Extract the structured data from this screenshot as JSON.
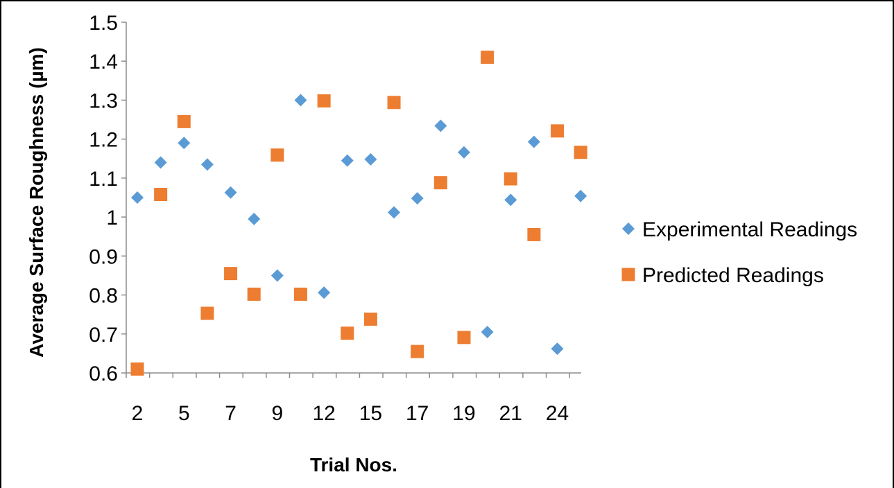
{
  "chart_data": {
    "type": "scatter",
    "title": "",
    "xlabel": "Trial Nos.",
    "ylabel": "Average Surface Roughness (µm)",
    "ylim": [
      0.6,
      1.5
    ],
    "yticks": [
      "0.6",
      "0.7",
      "0.8",
      "0.9",
      "1",
      "1.1",
      "1.2",
      "1.3",
      "1.4",
      "1.5"
    ],
    "x_tick_labels": [
      "2",
      "5",
      "7",
      "9",
      "12",
      "15",
      "17",
      "19",
      "21",
      "24"
    ],
    "x_count": 20,
    "grid": false,
    "legend_position": "right",
    "series": [
      {
        "name": "Experimental Readings",
        "marker": "diamond",
        "color": "#5B9BD5",
        "values": [
          1.05,
          1.14,
          1.19,
          1.135,
          1.063,
          0.995,
          0.85,
          1.3,
          0.806,
          1.145,
          1.148,
          1.012,
          1.048,
          1.234,
          1.166,
          0.705,
          1.044,
          1.193,
          0.662,
          1.054
        ]
      },
      {
        "name": "Predicted Readings",
        "marker": "square",
        "color": "#ED7D31",
        "values": [
          0.61,
          1.058,
          1.245,
          0.753,
          0.855,
          0.802,
          1.159,
          0.802,
          1.298,
          0.702,
          0.738,
          1.294,
          0.655,
          1.088,
          0.691,
          1.41,
          1.098,
          0.955,
          1.221,
          1.166
        ]
      }
    ]
  }
}
